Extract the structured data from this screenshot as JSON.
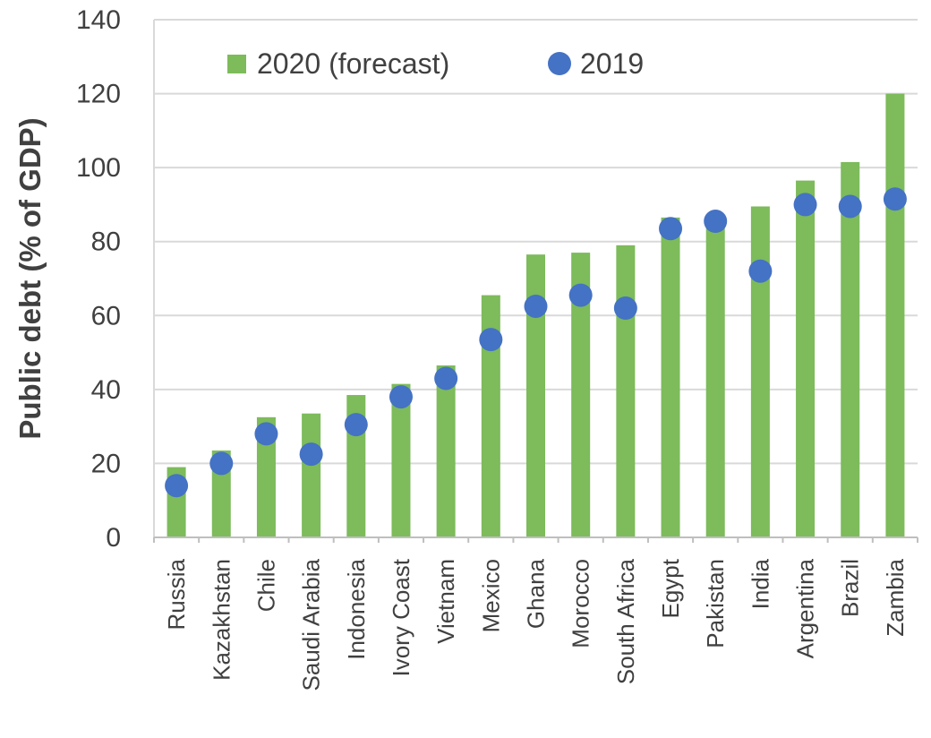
{
  "chart_data": {
    "type": "bar",
    "title": "",
    "xlabel": "",
    "ylabel": "Public debt (% of GDP)",
    "ylim": [
      0,
      140
    ],
    "yticks": [
      0,
      20,
      40,
      60,
      80,
      100,
      120,
      140
    ],
    "grid": true,
    "legend_position": "top",
    "categories": [
      "Russia",
      "Kazakhstan",
      "Chile",
      "Saudi Arabia",
      "Indonesia",
      "Ivory Coast",
      "Vietnam",
      "Mexico",
      "Ghana",
      "Morocco",
      "South Africa",
      "Egypt",
      "Pakistan",
      "India",
      "Argentina",
      "Brazil",
      "Zambia"
    ],
    "series": [
      {
        "name": "2020 (forecast)",
        "kind": "bar",
        "color": "#7dbb5b",
        "values": [
          19,
          23.5,
          32.5,
          33.5,
          38.5,
          41.5,
          46.5,
          65.5,
          76.5,
          77,
          79,
          86.5,
          87,
          89.5,
          96.5,
          101.5,
          120
        ]
      },
      {
        "name": "2019",
        "kind": "marker",
        "color": "#4472c4",
        "values": [
          14,
          20,
          28,
          22.5,
          30.5,
          38,
          43,
          53.5,
          62.5,
          65.5,
          62,
          83.5,
          85.5,
          72,
          90,
          89.5,
          91.5
        ]
      }
    ]
  }
}
